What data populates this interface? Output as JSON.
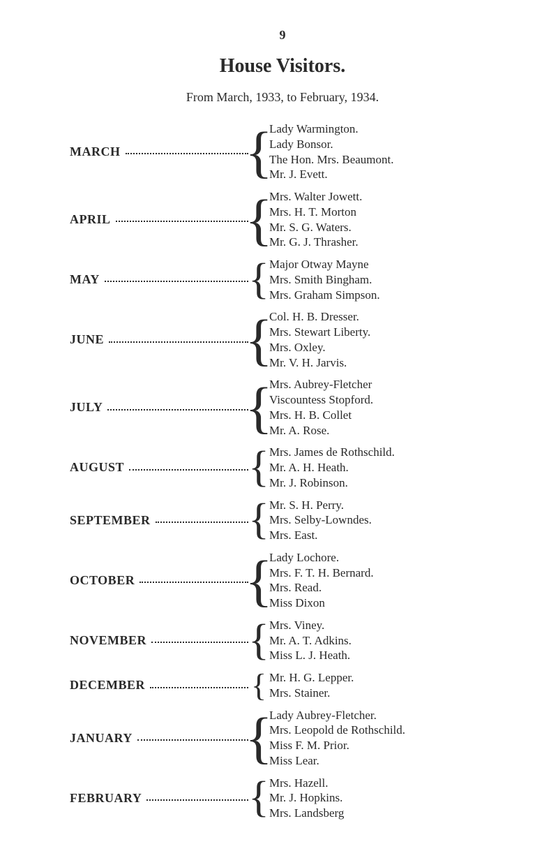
{
  "page_number": "9",
  "title": "House Visitors.",
  "subtitle": "From March, 1933, to February, 1934.",
  "brace_sizes": {
    "2": "46px",
    "3": "62px",
    "4": "82px"
  },
  "months": [
    {
      "label": "MARCH",
      "names": [
        "Lady Warmington.",
        "Lady Bonsor.",
        "The Hon. Mrs. Beaumont.",
        "Mr. J. Evett."
      ]
    },
    {
      "label": "APRIL",
      "names": [
        "Mrs. Walter Jowett.",
        "Mrs. H. T. Morton",
        "Mr. S. G. Waters.",
        "Mr. G. J. Thrasher."
      ]
    },
    {
      "label": "MAY",
      "names": [
        "Major Otway Mayne",
        "Mrs. Smith Bingham.",
        "Mrs. Graham Simpson."
      ]
    },
    {
      "label": "JUNE",
      "names": [
        "Col. H. B. Dresser.",
        "Mrs. Stewart Liberty.",
        "Mrs. Oxley.",
        "Mr. V. H. Jarvis."
      ]
    },
    {
      "label": "JULY",
      "names": [
        "Mrs. Aubrey-Fletcher",
        "Viscountess Stopford.",
        "Mrs. H. B. Collet",
        "Mr. A. Rose."
      ]
    },
    {
      "label": "AUGUST",
      "names": [
        "Mrs. James de Rothschild.",
        "Mr. A. H. Heath.",
        "Mr. J. Robinson."
      ]
    },
    {
      "label": "SEPTEMBER",
      "names": [
        "Mr. S. H. Perry.",
        "Mrs. Selby-Lowndes.",
        "Mrs. East."
      ]
    },
    {
      "label": "OCTOBER",
      "names": [
        "Lady Lochore.",
        "Mrs. F. T. H. Bernard.",
        "Mrs. Read.",
        "Miss Dixon"
      ]
    },
    {
      "label": "NOVEMBER",
      "names": [
        "Mrs. Viney.",
        "Mr. A. T. Adkins.",
        "Miss L. J. Heath."
      ]
    },
    {
      "label": "DECEMBER",
      "names": [
        "Mr. H. G. Lepper.",
        "Mrs. Stainer."
      ]
    },
    {
      "label": "JANUARY",
      "names": [
        "Lady Aubrey-Fletcher.",
        "Mrs. Leopold de Rothschild.",
        "Miss F. M. Prior.",
        "Miss Lear."
      ]
    },
    {
      "label": "FEBRUARY",
      "names": [
        "Mrs. Hazell.",
        "Mr. J. Hopkins.",
        "Mrs. Landsberg"
      ]
    }
  ]
}
